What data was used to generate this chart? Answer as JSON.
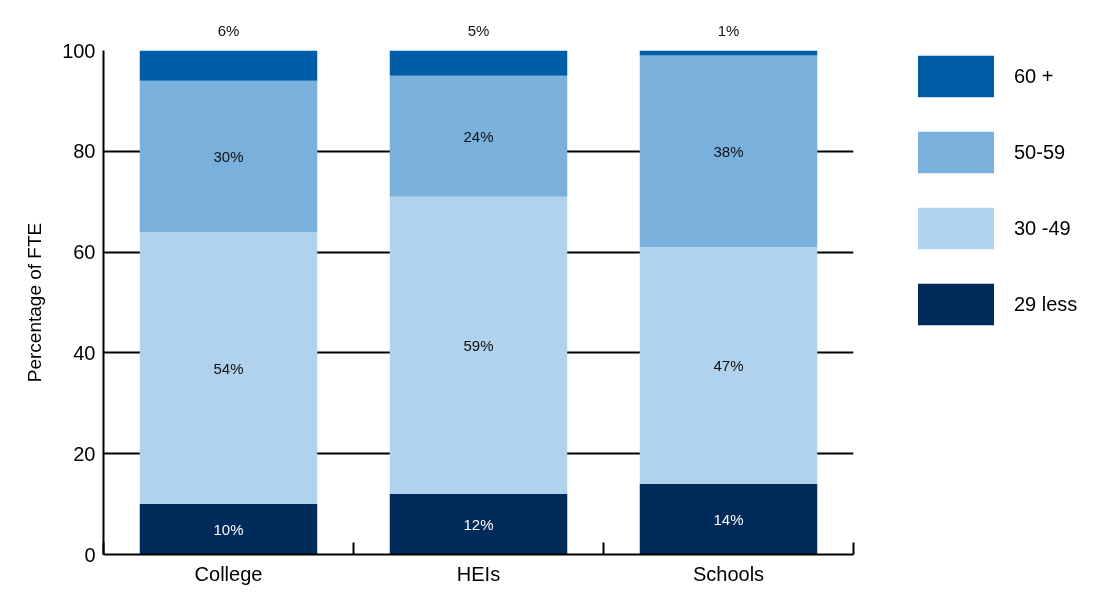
{
  "chart_data": {
    "type": "bar",
    "stacked": true,
    "ylabel": "Percentage of FTE",
    "categories": [
      "College",
      "HEIs",
      "Schools"
    ],
    "series": [
      {
        "name": "29 less",
        "color": "#002b5a",
        "values": [
          10,
          12,
          14
        ],
        "value_labels": [
          "10%",
          "12%",
          "14%"
        ]
      },
      {
        "name": "30 -49",
        "color": "#b0d2ec",
        "values": [
          54,
          59,
          47
        ],
        "value_labels": [
          "54%",
          "59%",
          "47%"
        ]
      },
      {
        "name": "50-59",
        "color": "#7ab0dc",
        "values": [
          30,
          24,
          38
        ],
        "value_labels": [
          "30%",
          "24%",
          "38%"
        ]
      },
      {
        "name": "60 +",
        "color": "#005ea8",
        "values": [
          6,
          5,
          1
        ],
        "value_labels": [
          "6%",
          "5%",
          "1%"
        ]
      }
    ],
    "ylim": [
      0,
      100
    ],
    "yticks": [
      0,
      20,
      40,
      60,
      80,
      100
    ],
    "grid": "y",
    "legend": "right"
  }
}
